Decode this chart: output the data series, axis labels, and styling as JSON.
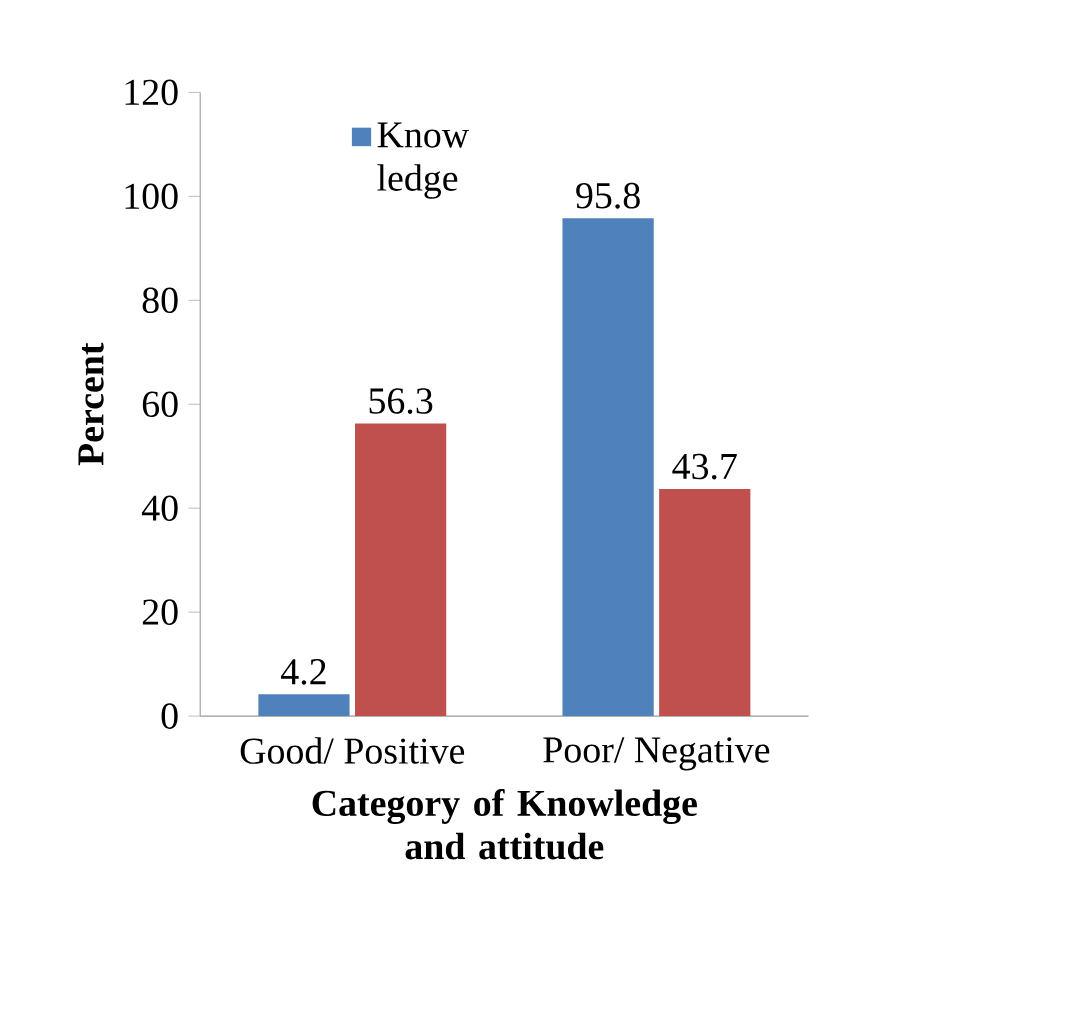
{
  "chart_data": {
    "type": "bar",
    "xlabel": "Category  of Knowledge and attitude",
    "ylabel": "Percent",
    "categories": [
      "Good/ Positive",
      "Poor/ Negative"
    ],
    "series": [
      {
        "name": "Know ledge",
        "color": "#4f81bd",
        "values": [
          4.2,
          95.8
        ]
      },
      {
        "color": "#c0504d",
        "values": [
          56.3,
          43.7
        ]
      }
    ],
    "ylim": [
      0,
      120
    ],
    "yticks": [
      0,
      20,
      40,
      60,
      80,
      100,
      120
    ],
    "data_labels": true,
    "legend": "top"
  }
}
